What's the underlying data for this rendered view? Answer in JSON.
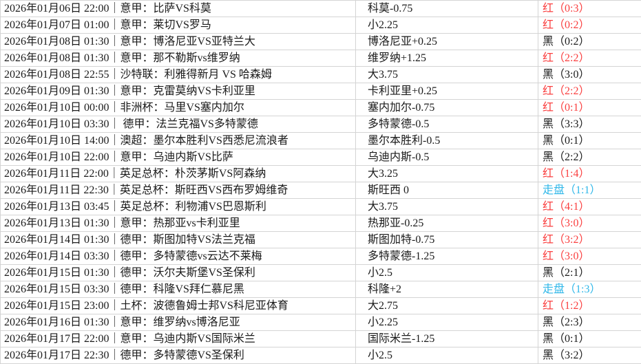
{
  "table": {
    "separator": "｜",
    "colors": {
      "red": "#fa3e3e",
      "black": "#1a1a1a",
      "draw": "#2fb7e9",
      "border": "#d4d4d4"
    },
    "rows": [
      {
        "datetime": "2026年01月06日 22:00",
        "match": "意甲：比萨VS科莫",
        "handicap": "科莫-0.75",
        "result": "红（0:3）",
        "result_color": "red"
      },
      {
        "datetime": "2026年01月07日 01:00",
        "match": "意甲：莱切VS罗马",
        "handicap": "小2.25",
        "result": "红（0:2）",
        "result_color": "red"
      },
      {
        "datetime": "2026年01月08日 01:30",
        "match": "意甲：博洛尼亚VS亚特兰大",
        "handicap": "博洛尼亚+0.25",
        "result": "黑（0:2）",
        "result_color": "black"
      },
      {
        "datetime": "2026年01月08日 01:30",
        "match": "意甲：那不勒斯vs维罗纳",
        "handicap": "维罗纳+1.25",
        "result": "红（2:2）",
        "result_color": "red"
      },
      {
        "datetime": "2026年01月08日 22:55",
        "match": "沙特联：利雅得新月 VS 哈森姆",
        "handicap": "大3.75",
        "result": "黑（3:0）",
        "result_color": "black"
      },
      {
        "datetime": "2026年01月09日 01:30",
        "match": "意甲：克雷莫纳VS卡利亚里",
        "handicap": "卡利亚里+0.25",
        "result": "红（2:2）",
        "result_color": "red"
      },
      {
        "datetime": "2026年01月10日 00:00",
        "match": "非洲杯：马里VS塞内加尔",
        "handicap": "塞内加尔-0.75",
        "result": "红（0:1）",
        "result_color": "red"
      },
      {
        "datetime": "2026年01月10日 03:30",
        "match": " 德甲：法兰克福VS多特蒙德",
        "handicap": "多特蒙德-0.5",
        "result": "黑（3:3）",
        "result_color": "black"
      },
      {
        "datetime": "2026年01月10日 14:00",
        "match": "澳超：墨尔本胜利VS西悉尼流浪者",
        "handicap": "墨尔本胜利-0.5",
        "result": "黑（0:1）",
        "result_color": "black"
      },
      {
        "datetime": "2026年01月10日 22:00",
        "match": "意甲：乌迪内斯VS比萨",
        "handicap": "乌迪内斯-0.5",
        "result": "黑（2:2）",
        "result_color": "black"
      },
      {
        "datetime": "2026年01月11日 22:00",
        "match": "英足总杯：朴茨茅斯VS阿森纳",
        "handicap": "大3.25",
        "result": "红（1:4）",
        "result_color": "red"
      },
      {
        "datetime": "2026年01月11日 22:30",
        "match": "英足总杯：斯旺西VS西布罗姆维奇",
        "handicap": "斯旺西 0",
        "result": "走盘（1:1）",
        "result_color": "draw"
      },
      {
        "datetime": "2026年01月13日 03:45",
        "match": "英足总杯：利物浦VS巴恩斯利",
        "handicap": "大3.75",
        "result": "红（4:1）",
        "result_color": "red"
      },
      {
        "datetime": "2026年01月13日 01:30",
        "match": "意甲：热那亚vs卡利亚里",
        "handicap": "热那亚-0.25",
        "result": "红（3:0）",
        "result_color": "red"
      },
      {
        "datetime": "2026年01月14日 01:30",
        "match": "德甲：斯图加特VS法兰克福",
        "handicap": "斯图加特-0.75",
        "result": "红（3:2）",
        "result_color": "red"
      },
      {
        "datetime": "2026年01月14日 03:30",
        "match": "德甲：多特蒙德vs云达不莱梅",
        "handicap": "多特蒙德-1.25",
        "result": "红（3:0）",
        "result_color": "red"
      },
      {
        "datetime": "2026年01月15日 01:30",
        "match": "德甲：沃尔夫斯堡VS圣保利",
        "handicap": "小2.5",
        "result": "黑（2:1）",
        "result_color": "black"
      },
      {
        "datetime": "2026年01月15日 03:30",
        "match": "德甲：科隆VS拜仁慕尼黑",
        "handicap": "科隆+2",
        "result": "走盘（1:3）",
        "result_color": "draw"
      },
      {
        "datetime": "2026年01月15日 23:00",
        "match": "土杯：波德鲁姆士邦VS科尼亚体育",
        "handicap": "大2.75",
        "result": "红（1:2）",
        "result_color": "red"
      },
      {
        "datetime": "2026年01月16日 01:30",
        "match": "意甲：维罗纳vs博洛尼亚",
        "handicap": "小2.25",
        "result": "黑（2:3）",
        "result_color": "black"
      },
      {
        "datetime": "2026年01月17日 22:00",
        "match": "意甲：乌迪内斯VS国际米兰",
        "handicap": "国际米兰-1.25",
        "result": "黑（0:1）",
        "result_color": "black"
      },
      {
        "datetime": "2026年01月17日 22:30",
        "match": "德甲：多特蒙德VS圣保利",
        "handicap": "小2.5",
        "result": "黑（3:2）",
        "result_color": "black"
      }
    ]
  }
}
